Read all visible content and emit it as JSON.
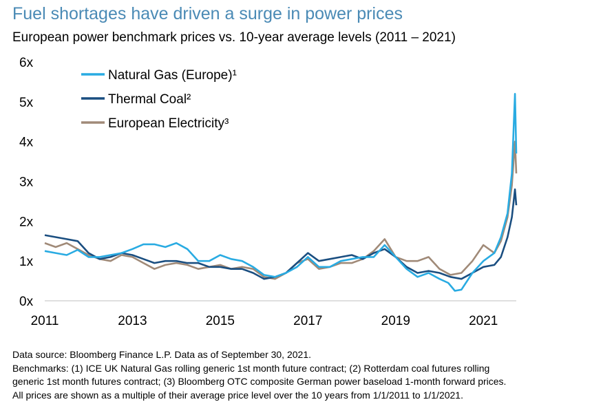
{
  "title": "Fuel shortages have driven a surge in power prices",
  "subtitle": "European power benchmark prices vs. 10-year average levels (2011 – 2021)",
  "footer": {
    "line1": "Data source: Bloomberg Finance L.P. Data as of September 30, 2021.",
    "line2": "Benchmarks: (1) ICE UK Natural Gas rolling generic 1st month future contract; (2) Rotterdam coal futures rolling",
    "line3": "generic 1st month futures contract; (3) Bloomberg OTC composite German power baseload 1-month forward prices.",
    "line4": "All prices are shown as a multiple of their average price level over the 10 years from 1/1/2011 to 1/1/2021."
  },
  "chart_data": {
    "type": "line",
    "xlim": [
      2011,
      2021.75
    ],
    "ylim": [
      0,
      6
    ],
    "x_ticks": [
      2011,
      2013,
      2015,
      2017,
      2019,
      2021
    ],
    "x_tick_labels": [
      "2011",
      "2013",
      "2015",
      "2017",
      "2019",
      "2021"
    ],
    "y_ticks": [
      0,
      1,
      2,
      3,
      4,
      5,
      6
    ],
    "y_tick_labels": [
      "0x",
      "1x",
      "2x",
      "3x",
      "4x",
      "5x",
      "6x"
    ],
    "legend_position": "top-left",
    "grid": false,
    "series": [
      {
        "name": "Natural Gas (Europe)¹",
        "color": "#29abe2",
        "points": [
          [
            2011.0,
            1.25
          ],
          [
            2011.25,
            1.2
          ],
          [
            2011.5,
            1.15
          ],
          [
            2011.75,
            1.28
          ],
          [
            2012.0,
            1.1
          ],
          [
            2012.25,
            1.1
          ],
          [
            2012.5,
            1.15
          ],
          [
            2012.75,
            1.2
          ],
          [
            2013.0,
            1.3
          ],
          [
            2013.25,
            1.42
          ],
          [
            2013.5,
            1.42
          ],
          [
            2013.75,
            1.35
          ],
          [
            2014.0,
            1.45
          ],
          [
            2014.25,
            1.3
          ],
          [
            2014.5,
            1.0
          ],
          [
            2014.75,
            1.0
          ],
          [
            2015.0,
            1.15
          ],
          [
            2015.25,
            1.05
          ],
          [
            2015.5,
            1.0
          ],
          [
            2015.75,
            0.85
          ],
          [
            2016.0,
            0.65
          ],
          [
            2016.25,
            0.6
          ],
          [
            2016.5,
            0.7
          ],
          [
            2016.75,
            0.85
          ],
          [
            2017.0,
            1.1
          ],
          [
            2017.25,
            0.85
          ],
          [
            2017.5,
            0.85
          ],
          [
            2017.75,
            1.0
          ],
          [
            2018.0,
            1.05
          ],
          [
            2018.25,
            1.1
          ],
          [
            2018.5,
            1.1
          ],
          [
            2018.75,
            1.4
          ],
          [
            2019.0,
            1.1
          ],
          [
            2019.25,
            0.8
          ],
          [
            2019.5,
            0.6
          ],
          [
            2019.75,
            0.7
          ],
          [
            2020.0,
            0.55
          ],
          [
            2020.2,
            0.45
          ],
          [
            2020.35,
            0.25
          ],
          [
            2020.5,
            0.28
          ],
          [
            2020.75,
            0.7
          ],
          [
            2021.0,
            1.0
          ],
          [
            2021.25,
            1.2
          ],
          [
            2021.4,
            1.6
          ],
          [
            2021.55,
            2.2
          ],
          [
            2021.65,
            3.2
          ],
          [
            2021.72,
            5.2
          ],
          [
            2021.75,
            3.7
          ]
        ]
      },
      {
        "name": "Thermal Coal²",
        "color": "#1a4e80",
        "points": [
          [
            2011.0,
            1.65
          ],
          [
            2011.25,
            1.6
          ],
          [
            2011.5,
            1.55
          ],
          [
            2011.75,
            1.5
          ],
          [
            2012.0,
            1.2
          ],
          [
            2012.25,
            1.05
          ],
          [
            2012.5,
            1.1
          ],
          [
            2012.75,
            1.2
          ],
          [
            2013.0,
            1.15
          ],
          [
            2013.25,
            1.05
          ],
          [
            2013.5,
            0.95
          ],
          [
            2013.75,
            1.0
          ],
          [
            2014.0,
            1.0
          ],
          [
            2014.25,
            0.95
          ],
          [
            2014.5,
            0.95
          ],
          [
            2014.75,
            0.85
          ],
          [
            2015.0,
            0.85
          ],
          [
            2015.25,
            0.8
          ],
          [
            2015.5,
            0.8
          ],
          [
            2015.75,
            0.7
          ],
          [
            2016.0,
            0.55
          ],
          [
            2016.25,
            0.6
          ],
          [
            2016.5,
            0.7
          ],
          [
            2016.75,
            0.95
          ],
          [
            2017.0,
            1.2
          ],
          [
            2017.25,
            1.0
          ],
          [
            2017.5,
            1.05
          ],
          [
            2017.75,
            1.1
          ],
          [
            2018.0,
            1.15
          ],
          [
            2018.25,
            1.05
          ],
          [
            2018.5,
            1.2
          ],
          [
            2018.75,
            1.3
          ],
          [
            2019.0,
            1.1
          ],
          [
            2019.25,
            0.85
          ],
          [
            2019.5,
            0.7
          ],
          [
            2019.75,
            0.75
          ],
          [
            2020.0,
            0.7
          ],
          [
            2020.25,
            0.6
          ],
          [
            2020.5,
            0.55
          ],
          [
            2020.75,
            0.7
          ],
          [
            2021.0,
            0.85
          ],
          [
            2021.25,
            0.9
          ],
          [
            2021.4,
            1.1
          ],
          [
            2021.55,
            1.6
          ],
          [
            2021.65,
            2.1
          ],
          [
            2021.72,
            2.8
          ],
          [
            2021.75,
            2.4
          ]
        ]
      },
      {
        "name": "European Electricity³",
        "color": "#a08a78",
        "points": [
          [
            2011.0,
            1.45
          ],
          [
            2011.25,
            1.35
          ],
          [
            2011.5,
            1.45
          ],
          [
            2011.75,
            1.3
          ],
          [
            2012.0,
            1.15
          ],
          [
            2012.25,
            1.05
          ],
          [
            2012.5,
            1.0
          ],
          [
            2012.75,
            1.15
          ],
          [
            2013.0,
            1.1
          ],
          [
            2013.25,
            0.95
          ],
          [
            2013.5,
            0.8
          ],
          [
            2013.75,
            0.9
          ],
          [
            2014.0,
            0.95
          ],
          [
            2014.25,
            0.9
          ],
          [
            2014.5,
            0.8
          ],
          [
            2014.75,
            0.85
          ],
          [
            2015.0,
            0.9
          ],
          [
            2015.25,
            0.8
          ],
          [
            2015.5,
            0.85
          ],
          [
            2015.75,
            0.8
          ],
          [
            2016.0,
            0.6
          ],
          [
            2016.25,
            0.55
          ],
          [
            2016.5,
            0.7
          ],
          [
            2016.75,
            0.95
          ],
          [
            2017.0,
            1.05
          ],
          [
            2017.25,
            0.8
          ],
          [
            2017.5,
            0.85
          ],
          [
            2017.75,
            0.95
          ],
          [
            2018.0,
            0.95
          ],
          [
            2018.25,
            1.05
          ],
          [
            2018.5,
            1.25
          ],
          [
            2018.75,
            1.55
          ],
          [
            2019.0,
            1.1
          ],
          [
            2019.25,
            1.0
          ],
          [
            2019.5,
            1.0
          ],
          [
            2019.75,
            1.1
          ],
          [
            2020.0,
            0.8
          ],
          [
            2020.25,
            0.65
          ],
          [
            2020.5,
            0.7
          ],
          [
            2020.75,
            1.0
          ],
          [
            2021.0,
            1.4
          ],
          [
            2021.25,
            1.2
          ],
          [
            2021.4,
            1.5
          ],
          [
            2021.55,
            2.1
          ],
          [
            2021.65,
            2.9
          ],
          [
            2021.72,
            4.0
          ],
          [
            2021.75,
            3.2
          ]
        ]
      }
    ]
  }
}
